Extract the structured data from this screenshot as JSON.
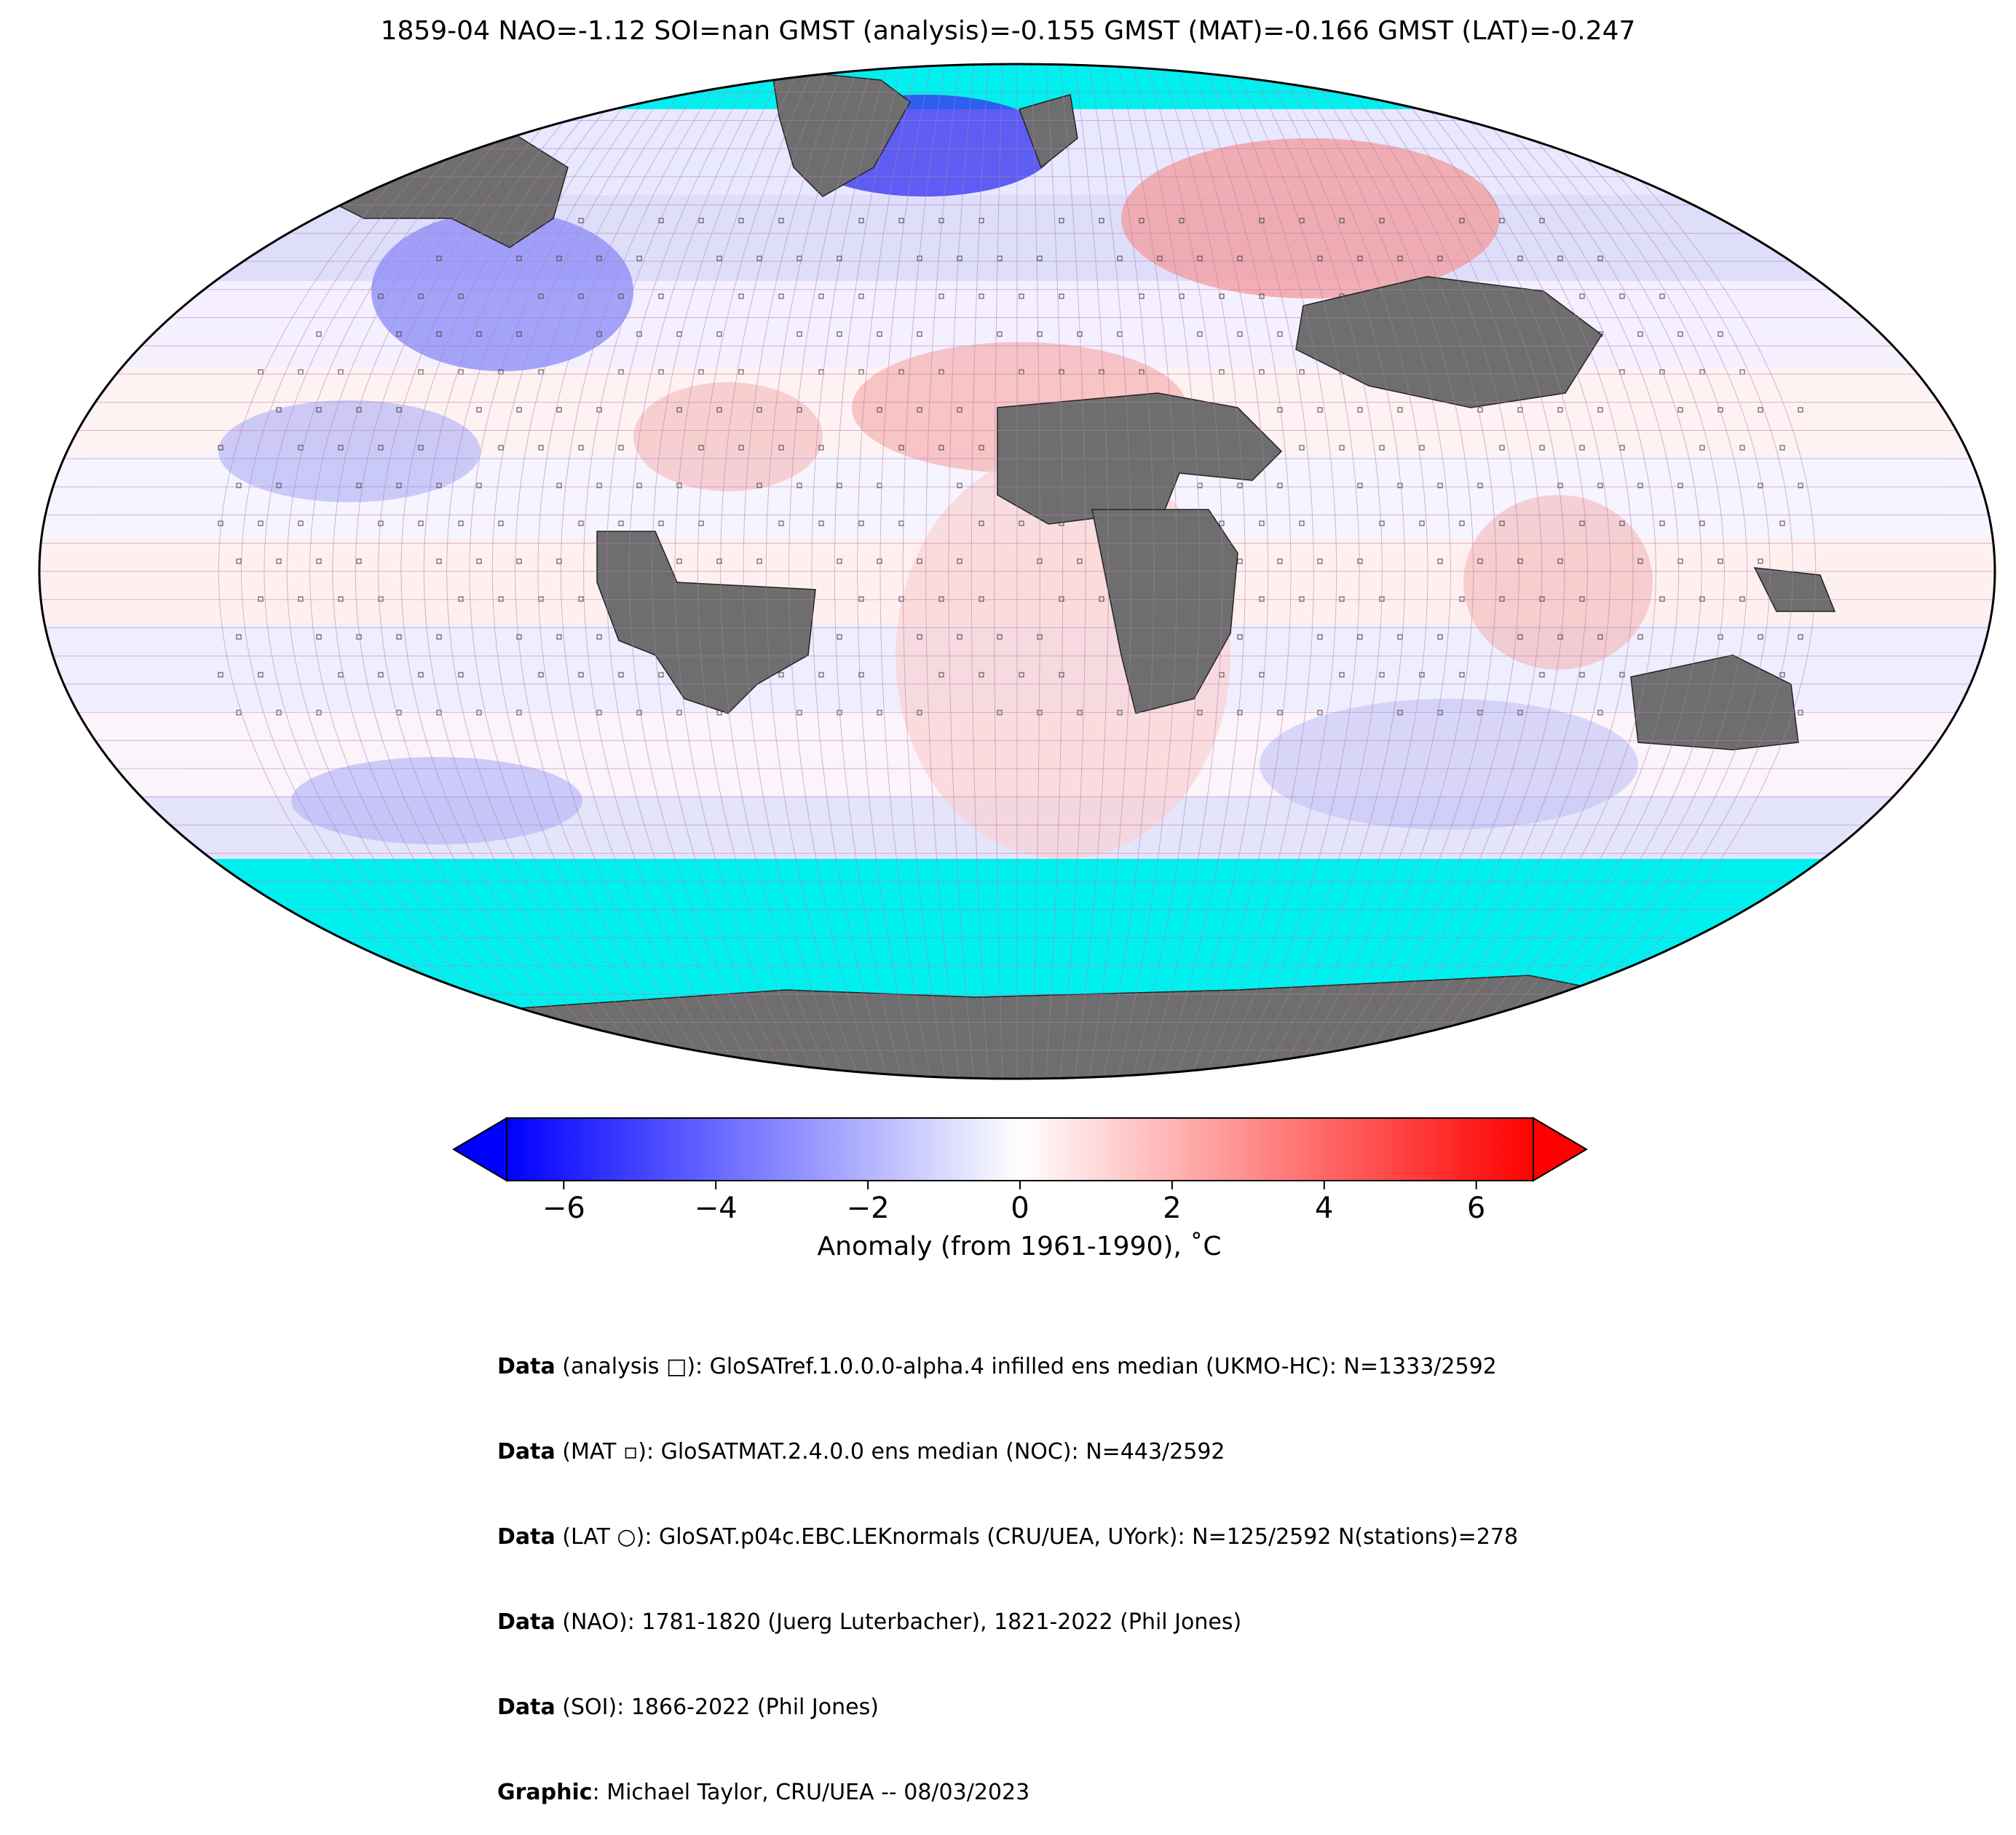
{
  "title": "1859-04 NAO=-1.12 SOI=nan GMST (analysis)=-0.155 GMST (MAT)=-0.166 GMST (LAT)=-0.247",
  "colorbar": {
    "label": "Anomaly (from 1961-1990), ˚C",
    "ticks": [
      "−6",
      "−4",
      "−2",
      "0",
      "2",
      "4",
      "6"
    ],
    "tick_values": [
      -6,
      -4,
      -2,
      0,
      2,
      4,
      6
    ],
    "colors": {
      "min": "#0000ff",
      "mid": "#ffffff",
      "max": "#ff0000"
    }
  },
  "map_colors": {
    "ocean_missing": "#00f0f0",
    "land_missing": "#6e6e6e",
    "grid": "#b47cb4",
    "coast": "#000000"
  },
  "credits": [
    {
      "bold": "Data",
      "text": " (analysis □): GloSATref.1.0.0.0-alpha.4 infilled ens median (UKMO-HC): N=1333/2592"
    },
    {
      "bold": "Data",
      "text": " (MAT ▫): GloSATMAT.2.4.0.0 ens median (NOC): N=443/2592"
    },
    {
      "bold": "Data",
      "text": " (LAT ○): GloSAT.p04c.EBC.LEKnormals (CRU/UEA, UYork): N=125/2592 N(stations)=278"
    },
    {
      "bold": "Data",
      "text": " (NAO): 1781-1820 (Juerg Luterbacher), 1821-2022 (Phil Jones)"
    },
    {
      "bold": "Data",
      "text": " (SOI): 1866-2022 (Phil Jones)"
    },
    {
      "bold": "Graphic",
      "text": ": Michael Taylor, CRU/UEA -- 08/03/2023"
    }
  ]
}
